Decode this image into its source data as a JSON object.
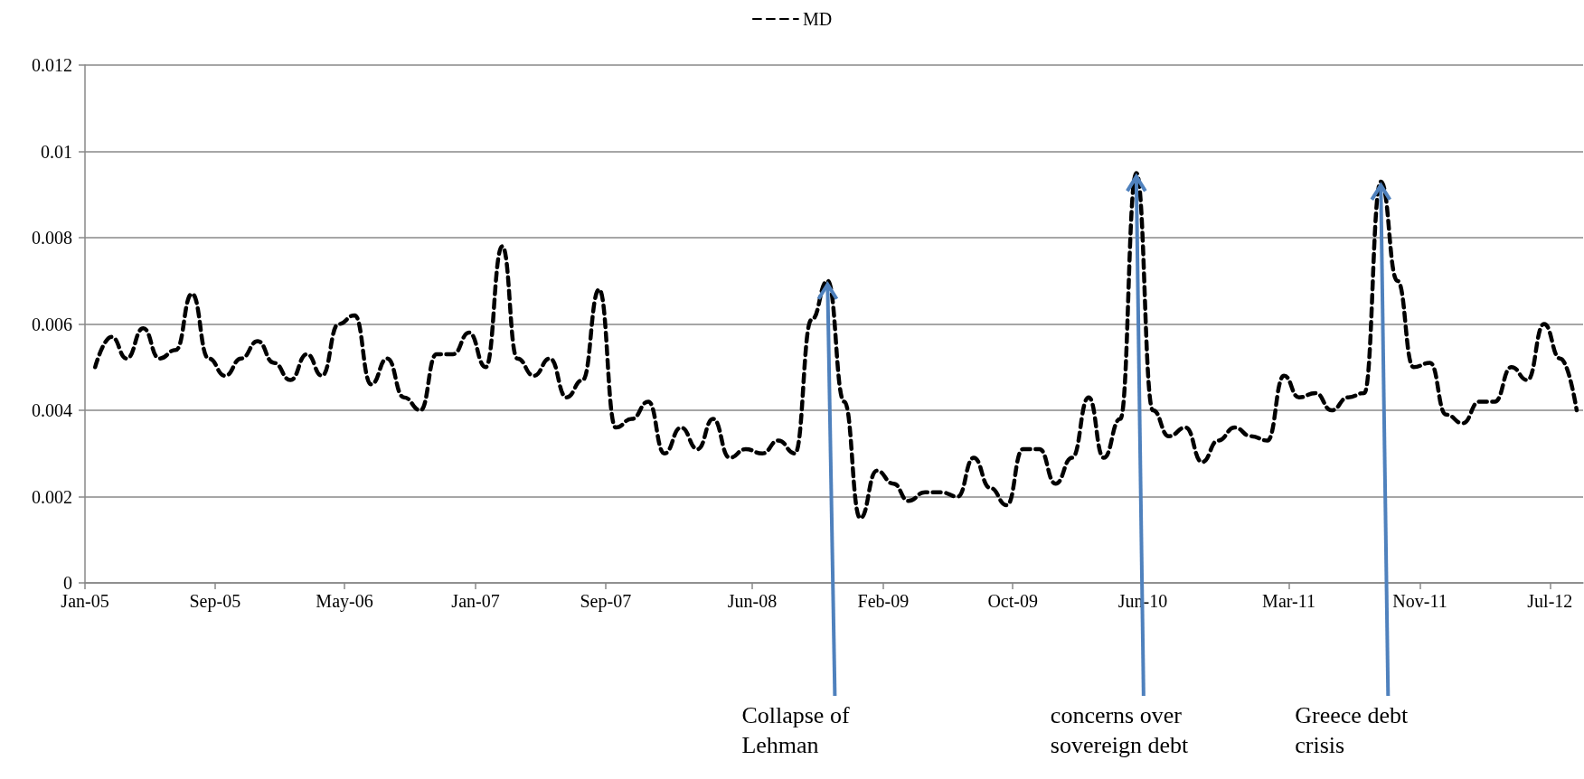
{
  "chart_data": {
    "type": "line",
    "legend": "top",
    "grid": "y",
    "marker": "none",
    "line_style": "dashed",
    "xlim": [
      "2005-01",
      "2012-09"
    ],
    "xticks": [
      {
        "value": "2005-01",
        "label": "Jan-05"
      },
      {
        "value": "2005-09",
        "label": "Sep-05"
      },
      {
        "value": "2006-05",
        "label": "May-06"
      },
      {
        "value": "2007-01",
        "label": "Jan-07"
      },
      {
        "value": "2007-09",
        "label": "Sep-07"
      },
      {
        "value": "2008-06",
        "label": "Jun-08"
      },
      {
        "value": "2009-02",
        "label": "Feb-09"
      },
      {
        "value": "2009-10",
        "label": "Oct-09"
      },
      {
        "value": "2010-06",
        "label": "Jun-10"
      },
      {
        "value": "2011-03",
        "label": "Mar-11"
      },
      {
        "value": "2011-11",
        "label": "Nov-11"
      },
      {
        "value": "2012-07",
        "label": "Jul-12"
      }
    ],
    "ylim": [
      0,
      0.012
    ],
    "yticks": [
      0,
      0.002,
      0.004,
      0.006,
      0.008,
      0.01,
      0.012
    ],
    "x": [
      "2005-01-20",
      "2005-02-20",
      "2005-03-20",
      "2005-04-20",
      "2005-05-20",
      "2005-06-20",
      "2005-07-20",
      "2005-08-20",
      "2005-09-20",
      "2005-10-20",
      "2005-11-20",
      "2005-12-20",
      "2006-01-20",
      "2006-02-20",
      "2006-03-20",
      "2006-04-20",
      "2006-05-20",
      "2006-06-20",
      "2006-07-20",
      "2006-08-20",
      "2006-09-20",
      "2006-10-20",
      "2006-11-20",
      "2006-12-20",
      "2007-01-20",
      "2007-02-20",
      "2007-03-20",
      "2007-04-20",
      "2007-05-20",
      "2007-06-20",
      "2007-07-20",
      "2007-08-20",
      "2007-09-20",
      "2007-10-20",
      "2007-11-20",
      "2007-12-20",
      "2008-01-20",
      "2008-02-20",
      "2008-03-20",
      "2008-04-20",
      "2008-05-20",
      "2008-06-20",
      "2008-07-20",
      "2008-08-20",
      "2008-09-20",
      "2008-10-20",
      "2008-11-20",
      "2008-12-20",
      "2009-01-20",
      "2009-02-20",
      "2009-03-20",
      "2009-04-20",
      "2009-05-20",
      "2009-06-20",
      "2009-07-20",
      "2009-08-20",
      "2009-09-20",
      "2009-10-20",
      "2009-11-20",
      "2009-12-20",
      "2010-01-20",
      "2010-02-20",
      "2010-03-20",
      "2010-04-20",
      "2010-05-20",
      "2010-06-20",
      "2010-07-20",
      "2010-08-20",
      "2010-09-20",
      "2010-10-20",
      "2010-11-20",
      "2010-12-20",
      "2011-01-20",
      "2011-02-20",
      "2011-03-20",
      "2011-04-20",
      "2011-05-20",
      "2011-06-20",
      "2011-07-20",
      "2011-08-20",
      "2011-09-20",
      "2011-10-20",
      "2011-11-20",
      "2011-12-20",
      "2012-01-20",
      "2012-02-20",
      "2012-03-20",
      "2012-04-20",
      "2012-05-20",
      "2012-06-20",
      "2012-07-20",
      "2012-08-20"
    ],
    "series": [
      {
        "name": "MD",
        "color": "#000000",
        "values": [
          0.005,
          0.0057,
          0.0052,
          0.0059,
          0.0052,
          0.0054,
          0.0067,
          0.0052,
          0.0048,
          0.0052,
          0.0056,
          0.0051,
          0.0047,
          0.0053,
          0.0048,
          0.006,
          0.0062,
          0.0046,
          0.0052,
          0.0043,
          0.004,
          0.0053,
          0.0053,
          0.0058,
          0.005,
          0.0078,
          0.0052,
          0.0048,
          0.0052,
          0.0043,
          0.0047,
          0.0068,
          0.0036,
          0.0038,
          0.0042,
          0.003,
          0.0036,
          0.0031,
          0.0038,
          0.0029,
          0.0031,
          0.003,
          0.0033,
          0.003,
          0.0061,
          0.007,
          0.0042,
          0.0015,
          0.0026,
          0.0023,
          0.0019,
          0.0021,
          0.0021,
          0.002,
          0.0029,
          0.0022,
          0.0018,
          0.0031,
          0.0031,
          0.0023,
          0.0029,
          0.0043,
          0.0029,
          0.0038,
          0.0095,
          0.004,
          0.0034,
          0.0036,
          0.0028,
          0.0033,
          0.0036,
          0.0034,
          0.0033,
          0.0048,
          0.0043,
          0.0044,
          0.004,
          0.0043,
          0.0044,
          0.0093,
          0.007,
          0.005,
          0.0051,
          0.0039,
          0.0037,
          0.0042,
          0.0042,
          0.005,
          0.0047,
          0.006,
          0.0052,
          0.004
        ]
      }
    ],
    "annotations": [
      {
        "text": "Collapse of Lehman",
        "x": "2008-10-20",
        "y": 0.007
      },
      {
        "text": "concerns over sovereign debt",
        "x": "2010-05-20",
        "y": 0.0095
      },
      {
        "text": "Greece debt crisis",
        "x": "2011-08-20",
        "y": 0.0093
      }
    ]
  }
}
